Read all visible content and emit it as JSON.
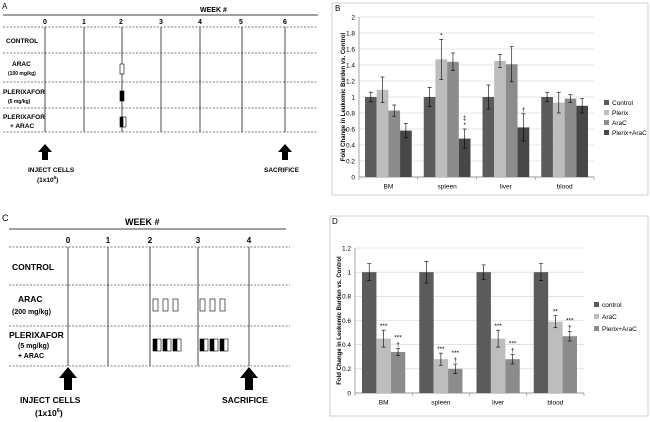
{
  "panels": {
    "A": {
      "letter": "A",
      "week_title": "WEEK #",
      "weeks": [
        "0",
        "1",
        "2",
        "3",
        "4",
        "5",
        "6"
      ],
      "rows": [
        {
          "label": "CONTROL",
          "sub": ""
        },
        {
          "label": "ARAC",
          "sub": "(100 mg/kg)"
        },
        {
          "label": "PLERIXAFOR",
          "sub": "(5 mg/kg)"
        },
        {
          "label": "PLERIXAFOR",
          "sub": "+ ARAC"
        }
      ],
      "inject_label": "INJECT CELLS",
      "inject_sub": "(1x10",
      "inject_sup": "6",
      "inject_close": ")",
      "sacrifice_label": "SACRIFICE"
    },
    "C": {
      "letter": "C",
      "week_title": "WEEK #",
      "weeks": [
        "0",
        "1",
        "2",
        "3",
        "4"
      ],
      "rows": [
        {
          "label": "CONTROL",
          "sub": "",
          "sub2": ""
        },
        {
          "label": "ARAC",
          "sub": "(200 mg/kg)",
          "sub2": ""
        },
        {
          "label": "PLERIXAFOR",
          "sub": "(5 mg/kg)",
          "sub2": "+ ARAC"
        }
      ],
      "inject_label": "INJECT CELLS",
      "inject_sub": "(1x10",
      "inject_sup": "6",
      "inject_close": ")",
      "sacrifice_label": "SACRIFICE"
    }
  },
  "chart_data": [
    {
      "panel": "B",
      "type": "bar",
      "ylabel": "Fold Change in Leukemic Burden vs. Control",
      "ylim": [
        0,
        2
      ],
      "ytick_step": 0.2,
      "yticks": [
        "0",
        "0.2",
        "0.4",
        "0.6",
        "0.8",
        "1",
        "1.2",
        "1.4",
        "1.6",
        "1.8",
        "2"
      ],
      "grid": true,
      "legend_position": "right",
      "categories": [
        "BM",
        "spleen",
        "liver",
        "blood"
      ],
      "series": [
        {
          "name": "Control",
          "color": "#5b5b5b",
          "values": [
            1.0,
            1.0,
            1.0,
            1.0
          ],
          "errors": [
            0.06,
            0.12,
            0.15,
            0.06
          ]
        },
        {
          "name": "Plerix",
          "color": "#bdbdbd",
          "values": [
            1.09,
            1.47,
            1.45,
            0.93
          ],
          "errors": [
            0.16,
            0.25,
            0.08,
            0.13
          ]
        },
        {
          "name": "AraC",
          "color": "#8c8c8c",
          "values": [
            0.83,
            1.44,
            1.41,
            0.98
          ],
          "errors": [
            0.07,
            0.11,
            0.22,
            0.05
          ]
        },
        {
          "name": "Plerix+AraC",
          "color": "#474747",
          "values": [
            0.58,
            0.48,
            0.62,
            0.89
          ],
          "errors": [
            0.09,
            0.12,
            0.17,
            0.09
          ]
        }
      ],
      "annotations": [
        {
          "category": 1,
          "series": 1,
          "text": "*"
        },
        {
          "category": 1,
          "series": 3,
          "text": "*"
        },
        {
          "category": 1,
          "series": 3,
          "text": "‡"
        },
        {
          "category": 2,
          "series": 3,
          "text": "†"
        }
      ]
    },
    {
      "panel": "D",
      "type": "bar",
      "ylabel": "Fold Change in Leukemic Burden vs. Control",
      "ylim": [
        0,
        1.2
      ],
      "ytick_step": 0.2,
      "yticks": [
        "0",
        "0.2",
        "0.4",
        "0.6",
        "0.8",
        "1",
        "1.2"
      ],
      "grid": true,
      "legend_position": "right",
      "categories": [
        "BM",
        "spleen",
        "liver",
        "blood"
      ],
      "series": [
        {
          "name": "control",
          "color": "#5b5b5b",
          "values": [
            1.0,
            1.0,
            1.0,
            1.0
          ],
          "errors": [
            0.07,
            0.09,
            0.06,
            0.07
          ]
        },
        {
          "name": "AraC",
          "color": "#bdbdbd",
          "values": [
            0.45,
            0.28,
            0.45,
            0.59
          ],
          "errors": [
            0.07,
            0.05,
            0.07,
            0.05
          ]
        },
        {
          "name": "Plerix+AraC",
          "color": "#8c8c8c",
          "values": [
            0.34,
            0.2,
            0.28,
            0.47
          ],
          "errors": [
            0.03,
            0.04,
            0.04,
            0.04
          ]
        }
      ],
      "annotations": [
        {
          "category": 0,
          "series": 1,
          "text": "***"
        },
        {
          "category": 0,
          "series": 2,
          "text": "†"
        },
        {
          "category": 0,
          "series": 2,
          "text": "***"
        },
        {
          "category": 1,
          "series": 1,
          "text": "***"
        },
        {
          "category": 1,
          "series": 2,
          "text": "†"
        },
        {
          "category": 1,
          "series": 2,
          "text": "***"
        },
        {
          "category": 2,
          "series": 1,
          "text": "***"
        },
        {
          "category": 2,
          "series": 2,
          "text": "†"
        },
        {
          "category": 2,
          "series": 2,
          "text": "***"
        },
        {
          "category": 3,
          "series": 1,
          "text": "**"
        },
        {
          "category": 3,
          "series": 2,
          "text": "†"
        },
        {
          "category": 3,
          "series": 2,
          "text": "***"
        }
      ]
    }
  ]
}
